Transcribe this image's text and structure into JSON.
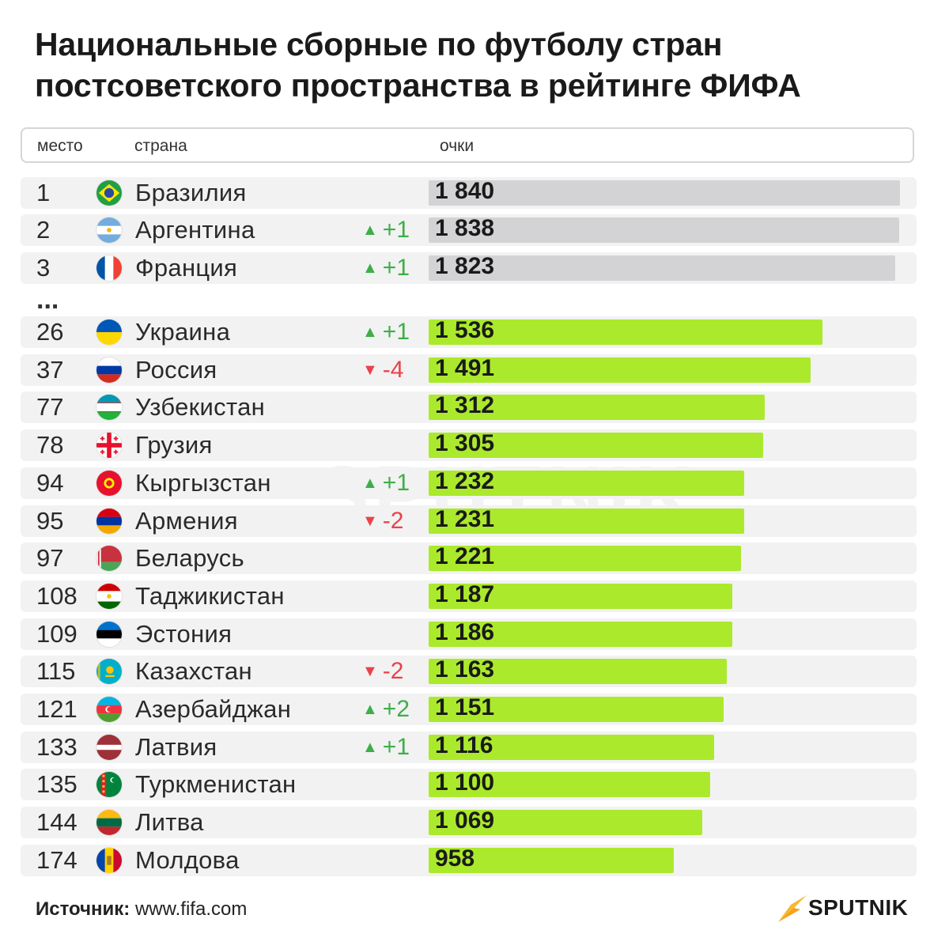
{
  "title": "Национальные сборные по футболу стран постсоветского пространства в рейтинге ФИФА",
  "header": {
    "rank": "место",
    "country": "страна",
    "points": "очки"
  },
  "ellipsis": "...",
  "footer": {
    "source_label": "Источник:",
    "source_value": "www.fifa.com"
  },
  "brand": "SPUTNIK",
  "watermark": "SPUTNIK",
  "colors": {
    "bar_top": "#d3d3d5",
    "bar_main": "#abe92c",
    "up": "#3dae4a",
    "down": "#e8434b",
    "brand": "#f5a31a"
  },
  "chart_data": {
    "type": "bar",
    "orientation": "horizontal",
    "xlim": [
      0,
      1840
    ],
    "rows": [
      {
        "rank": "1",
        "country": "Бразилия",
        "points": 1840,
        "points_label": "1 840",
        "change": "",
        "dir": "",
        "flag": "brazil-flag-icon",
        "group": "top"
      },
      {
        "rank": "2",
        "country": "Аргентина",
        "points": 1838,
        "points_label": "1 838",
        "change": "+1",
        "dir": "up",
        "flag": "argentina-flag-icon",
        "group": "top"
      },
      {
        "rank": "3",
        "country": "Франция",
        "points": 1823,
        "points_label": "1 823",
        "change": "+1",
        "dir": "up",
        "flag": "france-flag-icon",
        "group": "top"
      },
      {
        "rank": "26",
        "country": "Украина",
        "points": 1536,
        "points_label": "1 536",
        "change": "+1",
        "dir": "up",
        "flag": "ukraine-flag-icon",
        "group": "main"
      },
      {
        "rank": "37",
        "country": "Россия",
        "points": 1491,
        "points_label": "1 491",
        "change": "-4",
        "dir": "down",
        "flag": "russia-flag-icon",
        "group": "main"
      },
      {
        "rank": "77",
        "country": "Узбекистан",
        "points": 1312,
        "points_label": "1 312",
        "change": "",
        "dir": "",
        "flag": "uzbekistan-flag-icon",
        "group": "main"
      },
      {
        "rank": "78",
        "country": "Грузия",
        "points": 1305,
        "points_label": "1 305",
        "change": "",
        "dir": "",
        "flag": "georgia-flag-icon",
        "group": "main"
      },
      {
        "rank": "94",
        "country": "Кыргызстан",
        "points": 1232,
        "points_label": "1 232",
        "change": "+1",
        "dir": "up",
        "flag": "kyrgyzstan-flag-icon",
        "group": "main"
      },
      {
        "rank": "95",
        "country": "Армения",
        "points": 1231,
        "points_label": "1 231",
        "change": "-2",
        "dir": "down",
        "flag": "armenia-flag-icon",
        "group": "main"
      },
      {
        "rank": "97",
        "country": "Беларусь",
        "points": 1221,
        "points_label": "1 221",
        "change": "",
        "dir": "",
        "flag": "belarus-flag-icon",
        "group": "main"
      },
      {
        "rank": "108",
        "country": "Таджикистан",
        "points": 1187,
        "points_label": "1 187",
        "change": "",
        "dir": "",
        "flag": "tajikistan-flag-icon",
        "group": "main"
      },
      {
        "rank": "109",
        "country": "Эстония",
        "points": 1186,
        "points_label": "1 186",
        "change": "",
        "dir": "",
        "flag": "estonia-flag-icon",
        "group": "main"
      },
      {
        "rank": "115",
        "country": "Казахстан",
        "points": 1163,
        "points_label": "1 163",
        "change": "-2",
        "dir": "down",
        "flag": "kazakhstan-flag-icon",
        "group": "main"
      },
      {
        "rank": "121",
        "country": "Азербайджан",
        "points": 1151,
        "points_label": "1 151",
        "change": "+2",
        "dir": "up",
        "flag": "azerbaijan-flag-icon",
        "group": "main"
      },
      {
        "rank": "133",
        "country": "Латвия",
        "points": 1116,
        "points_label": "1 116",
        "change": "+1",
        "dir": "up",
        "flag": "latvia-flag-icon",
        "group": "main"
      },
      {
        "rank": "135",
        "country": "Туркменистан",
        "points": 1100,
        "points_label": "1 100",
        "change": "",
        "dir": "",
        "flag": "turkmenistan-flag-icon",
        "group": "main"
      },
      {
        "rank": "144",
        "country": "Литва",
        "points": 1069,
        "points_label": "1 069",
        "change": "",
        "dir": "",
        "flag": "lithuania-flag-icon",
        "group": "main"
      },
      {
        "rank": "174",
        "country": "Молдова",
        "points": 958,
        "points_label": "958",
        "change": "",
        "dir": "",
        "flag": "moldova-flag-icon",
        "group": "main"
      }
    ]
  }
}
